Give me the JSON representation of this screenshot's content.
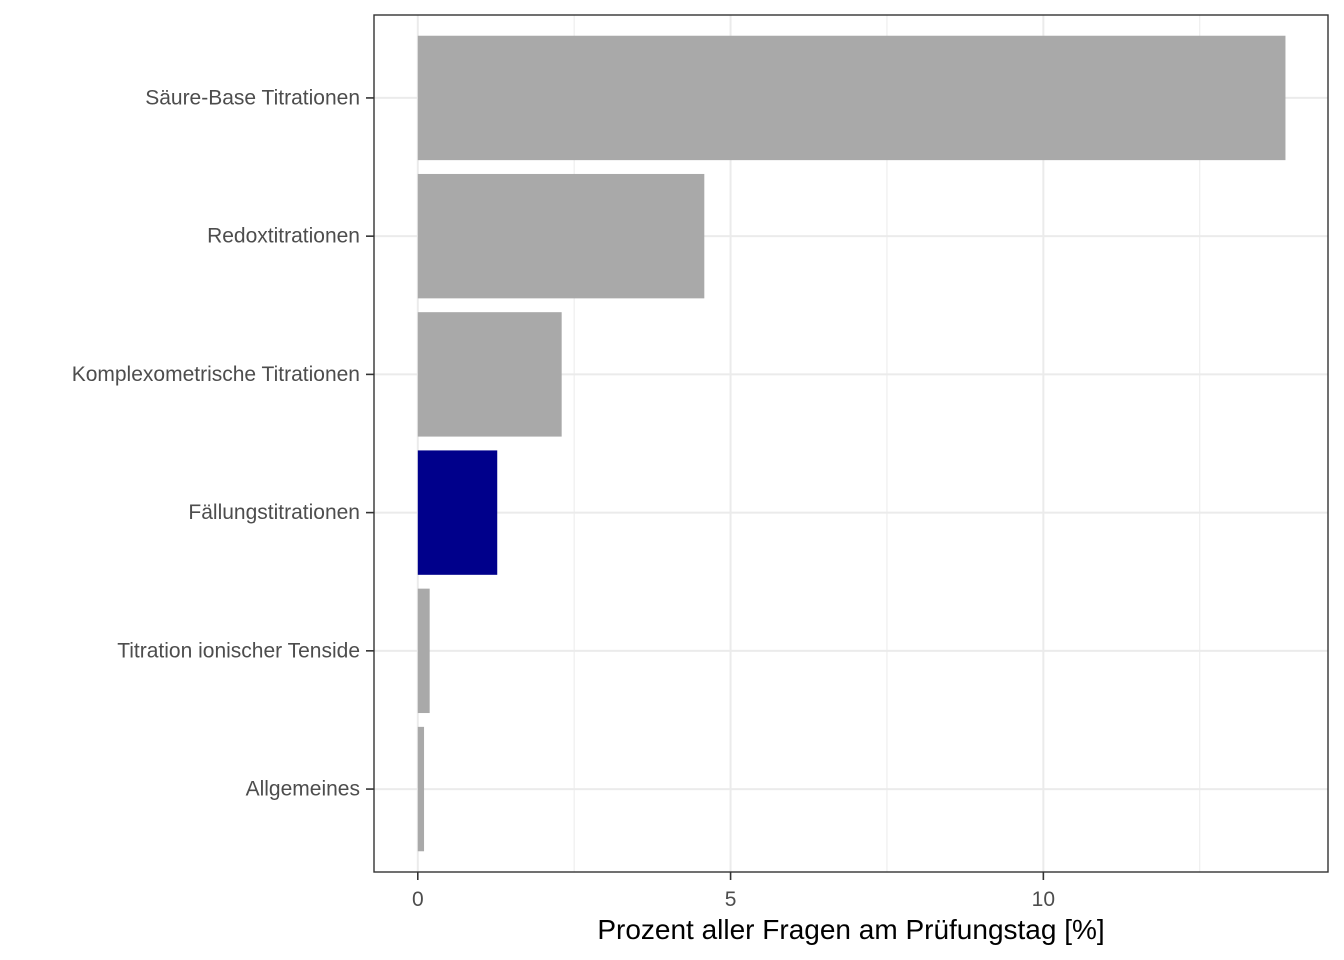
{
  "chart_data": {
    "type": "bar",
    "orientation": "horizontal",
    "categories": [
      "Säure-Base Titrationen",
      "Redoxtitrationen",
      "Komplexometrische Titrationen",
      "Fällungstitrationen",
      "Titration ionischer Tenside",
      "Allgemeines"
    ],
    "values": [
      13.87,
      4.58,
      2.3,
      1.27,
      0.19,
      0.1
    ],
    "highlight_index": 3,
    "colors": {
      "default": "#a9a9a9",
      "highlight": "#00008b",
      "grid": "#ebebeb",
      "panel_border": "#333333"
    },
    "x_ticks": [
      0,
      5,
      10
    ],
    "x_tick_labels": [
      "0",
      "5",
      "10"
    ],
    "xlim": [
      -0.7,
      14.55
    ],
    "xlabel": "Prozent aller Fragen am Prüfungstag [%]",
    "ylabel": "",
    "title": "",
    "grid": true,
    "legend": "none"
  }
}
